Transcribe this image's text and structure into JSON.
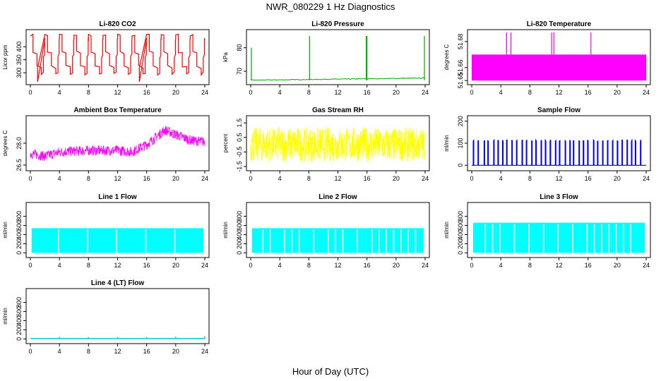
{
  "figure": {
    "title": "NWR_080229  1 Hz Diagnostics",
    "xlabel": "Hour of Day (UTC)"
  },
  "chart_data": [
    {
      "type": "line",
      "title": "Li-820 CO2",
      "ylabel": "Licor ppm",
      "color": "#ff0000",
      "xlim": [
        0,
        24
      ],
      "xticks": [
        0,
        4,
        8,
        12,
        16,
        20,
        24
      ],
      "ylim": [
        265,
        455
      ],
      "yticks": [
        300,
        350,
        400
      ],
      "pattern": "sawtooth",
      "cycles": 12,
      "low": 300,
      "high": 445
    },
    {
      "type": "line",
      "title": "Li-820 Pressure",
      "ylabel": "kPa",
      "color": "#00aa00",
      "xlim": [
        0,
        24
      ],
      "xticks": [
        0,
        4,
        8,
        12,
        16,
        20,
        24
      ],
      "ylim": [
        65.5,
        86.5
      ],
      "yticks": [
        70,
        80
      ],
      "pattern": "baseline_spikes",
      "baseline": [
        66.2,
        67.1
      ],
      "spikes": [
        [
          0.1,
          80
        ],
        [
          8.1,
          85
        ],
        [
          15.9,
          85
        ],
        [
          16.0,
          85
        ],
        [
          23.9,
          85
        ]
      ]
    },
    {
      "type": "area",
      "title": "Li-820 Temperature",
      "ylabel": "degrees C",
      "color": "#ff00ff",
      "xlim": [
        0,
        24
      ],
      "xticks": [
        0,
        4,
        8,
        12,
        16,
        20,
        24
      ],
      "ylim": [
        51.649,
        51.687
      ],
      "yticks": [
        51.65,
        51.66,
        51.68
      ],
      "yticklabels": [
        "51.65",
        "51.66",
        "51.68"
      ],
      "pattern": "band_spikes",
      "band": [
        51.65,
        51.67
      ],
      "spikes": [
        [
          4.8,
          51.687
        ],
        [
          5.4,
          51.687
        ],
        [
          11.0,
          51.687
        ],
        [
          11.3,
          51.687
        ],
        [
          16.4,
          51.687
        ]
      ]
    },
    {
      "type": "line",
      "title": "Ambient Box Temperature",
      "ylabel": "degrees C",
      "color": "#ff00ff",
      "xlim": [
        0,
        24
      ],
      "xticks": [
        0,
        4,
        8,
        12,
        16,
        20,
        24
      ],
      "ylim": [
        26.3,
        29.7
      ],
      "yticks": [
        26.5,
        28.0
      ],
      "yticklabels": [
        "26.5",
        "28.0"
      ],
      "pattern": "noisy_trend",
      "mean_points": [
        [
          0,
          27.3
        ],
        [
          2,
          27.1
        ],
        [
          4,
          27.4
        ],
        [
          8,
          27.5
        ],
        [
          12,
          27.5
        ],
        [
          14,
          27.4
        ],
        [
          16,
          27.9
        ],
        [
          18.5,
          28.9
        ],
        [
          20,
          28.6
        ],
        [
          22,
          28.2
        ],
        [
          24,
          28.1
        ]
      ],
      "noise": 0.35
    },
    {
      "type": "line",
      "title": "Gas Stream RH",
      "ylabel": "percent",
      "color": "#ffff00",
      "xlim": [
        0,
        24
      ],
      "xticks": [
        0,
        4,
        8,
        12,
        16,
        20,
        24
      ],
      "ylim": [
        -1.6,
        1.8
      ],
      "yticks": [
        -1.5,
        -0.5,
        0.5,
        1.5
      ],
      "yticklabels": [
        "-1.5",
        "-0.5",
        "0.5",
        "1.5"
      ],
      "pattern": "noise",
      "mean": 0.0,
      "noise": 1.2
    },
    {
      "type": "line",
      "title": "Sample Flow",
      "ylabel": "ml/min",
      "color": "#0000ee",
      "xlim": [
        0,
        24
      ],
      "xticks": [
        0,
        4,
        8,
        12,
        16,
        20,
        24
      ],
      "ylim": [
        -12,
        212
      ],
      "yticks": [
        0,
        100,
        200
      ],
      "pattern": "pulses",
      "base": 0,
      "top": 115,
      "count": 36
    },
    {
      "type": "area",
      "title": "Line 1 Flow",
      "ylabel": "ml/min",
      "color": "#00ffff",
      "xlim": [
        0,
        24
      ],
      "xticks": [
        0,
        4,
        8,
        12,
        16,
        20,
        24
      ],
      "ylim": [
        -40,
        1040
      ],
      "yticks": [
        0,
        200,
        400,
        600,
        800
      ],
      "pattern": "block_gaps",
      "top": 540,
      "gaps": [
        3.8,
        7.8,
        11.8,
        15.8,
        19.8
      ]
    },
    {
      "type": "area",
      "title": "Line 2 Flow",
      "ylabel": "ml/min",
      "color": "#00ffff",
      "xlim": [
        0,
        24
      ],
      "xticks": [
        0,
        4,
        8,
        12,
        16,
        20,
        24
      ],
      "ylim": [
        -40,
        1040
      ],
      "yticks": [
        0,
        200,
        400,
        600,
        800
      ],
      "pattern": "block_gaps",
      "top": 540,
      "gaps": [
        1.6,
        2.6,
        4.6,
        5.6,
        6.6,
        8.6,
        10.6,
        11.6,
        12.6,
        14.6,
        16.6,
        17.6,
        18.6,
        19.6,
        20.6,
        21.6,
        22.6
      ]
    },
    {
      "type": "area",
      "title": "Line 3 Flow",
      "ylabel": "ml/min",
      "color": "#00ffff",
      "xlim": [
        0,
        24
      ],
      "xticks": [
        0,
        4,
        8,
        12,
        16,
        20,
        24
      ],
      "ylim": [
        -40,
        1040
      ],
      "yticks": [
        0,
        200,
        400,
        600,
        800
      ],
      "pattern": "block_gaps",
      "top": 660,
      "gaps": [
        1.8,
        2.8,
        3.8,
        5.8,
        7.8,
        9.8,
        11.8,
        13.8,
        15.8,
        16.8,
        17.8,
        18.8,
        19.8,
        20.8,
        21.8
      ]
    },
    {
      "type": "line",
      "title": "Line 4 (LT) Flow",
      "ylabel": "ml/min",
      "color": "#00cccc",
      "xlim": [
        0,
        24
      ],
      "xticks": [
        0,
        4,
        8,
        12,
        16,
        20,
        24
      ],
      "ylim": [
        -40,
        1040
      ],
      "yticks": [
        0,
        200,
        400,
        600,
        800
      ],
      "pattern": "flat_bumps",
      "base": 10,
      "bumps": [
        [
          4,
          50
        ],
        [
          8,
          40
        ],
        [
          12,
          40
        ],
        [
          16,
          40
        ],
        [
          20,
          50
        ],
        [
          24,
          60
        ]
      ]
    }
  ]
}
